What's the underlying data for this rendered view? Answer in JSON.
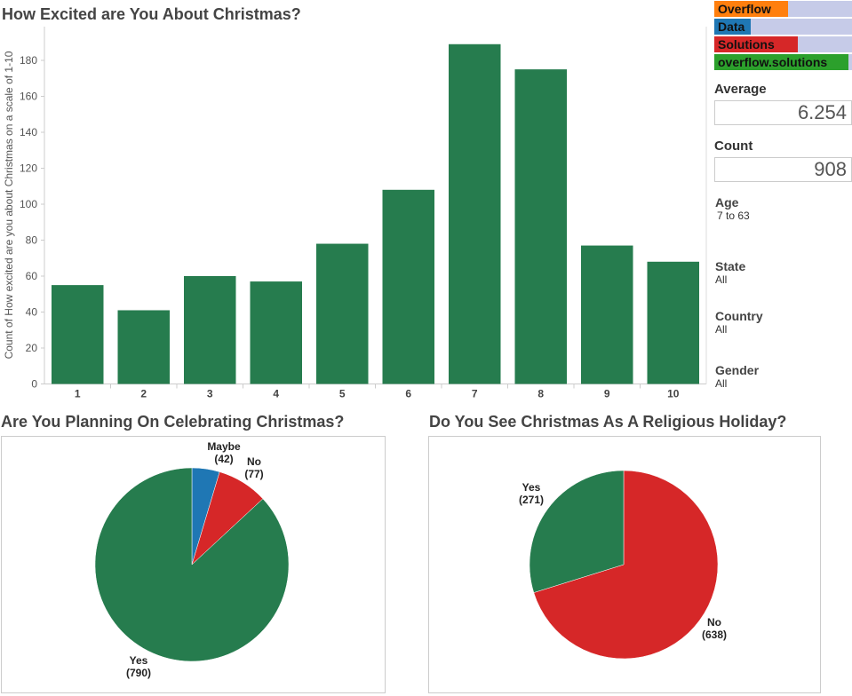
{
  "chart_data": [
    {
      "type": "bar",
      "title": "How Excited are You About Christmas?",
      "ylabel": "Count of How excited are you about Christmas on a scale of 1-10",
      "xlabel": "",
      "categories": [
        "1",
        "2",
        "3",
        "4",
        "5",
        "6",
        "7",
        "8",
        "9",
        "10"
      ],
      "values": [
        55,
        41,
        60,
        57,
        78,
        108,
        189,
        175,
        77,
        68
      ],
      "ylim": [
        0,
        195
      ],
      "yticks": [
        0,
        20,
        40,
        60,
        80,
        100,
        120,
        140,
        160,
        180
      ],
      "color": "#267c4e",
      "grid": false
    },
    {
      "type": "pie",
      "title": "Are You Planning On Celebrating Christmas?",
      "slices": [
        {
          "label": "Maybe",
          "value": 42,
          "color": "#1f77b4"
        },
        {
          "label": "No",
          "value": 77,
          "color": "#d62728"
        },
        {
          "label": "Yes",
          "value": 790,
          "color": "#267c4e"
        }
      ]
    },
    {
      "type": "pie",
      "title": "Do You See Christmas As A Religious Holiday?",
      "slices": [
        {
          "label": "No",
          "value": 638,
          "color": "#d62728"
        },
        {
          "label": "Yes",
          "value": 271,
          "color": "#267c4e"
        }
      ]
    }
  ],
  "legend": [
    {
      "label": "Overflow",
      "color": "#ff7f0e",
      "fill": 0.55
    },
    {
      "label": "Data",
      "color": "#1f77b4",
      "fill": 0.27
    },
    {
      "label": "Solutions",
      "color": "#d62728",
      "fill": 0.62
    },
    {
      "label": "overflow.solutions",
      "color": "#2ca02c",
      "fill": 1.0
    }
  ],
  "summary": {
    "average_label": "Average",
    "average": "6.254",
    "count_label": "Count",
    "count": "908"
  },
  "filters": [
    {
      "name": "Age",
      "value": "7 to 63"
    },
    {
      "name": "State",
      "value": "All"
    },
    {
      "name": "Country",
      "value": "All"
    },
    {
      "name": "Gender",
      "value": "All"
    }
  ]
}
